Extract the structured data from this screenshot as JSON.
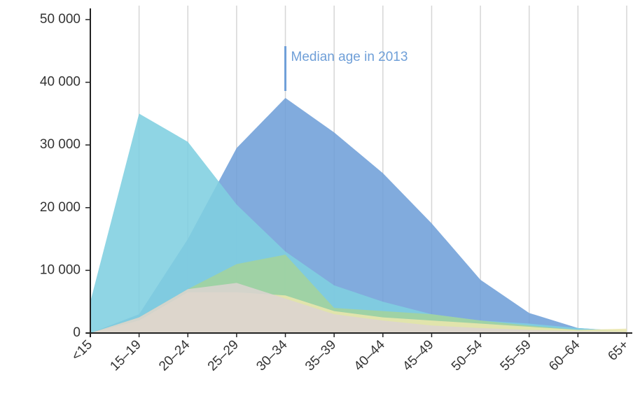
{
  "chart_data": {
    "type": "area",
    "categories": [
      "<15",
      "15–19",
      "20–24",
      "25–29",
      "30–34",
      "35–39",
      "40–44",
      "45–49",
      "50–54",
      "55–59",
      "60–64",
      "65+"
    ],
    "series": [
      {
        "color": "#6f9fd8",
        "values": [
          0,
          3000,
          15000,
          29500,
          37500,
          32000,
          25500,
          17500,
          8500,
          3200,
          800,
          300
        ]
      },
      {
        "color": "#80cfe0",
        "values": [
          5000,
          35000,
          30500,
          20500,
          13000,
          7600,
          5000,
          3000,
          2000,
          1500,
          800,
          300
        ]
      },
      {
        "color": "#a3d39c",
        "values": [
          0,
          2500,
          7000,
          11000,
          12500,
          4000,
          3500,
          3000,
          2000,
          1200,
          500,
          400
        ]
      },
      {
        "color": "#ebe6ad",
        "values": [
          0,
          2000,
          6500,
          6500,
          6000,
          3500,
          2500,
          2000,
          1500,
          1000,
          500,
          700
        ]
      },
      {
        "color": "#dcd4d0",
        "values": [
          0,
          2500,
          7000,
          8000,
          5500,
          3000,
          2000,
          1200,
          800,
          500,
          300,
          200
        ]
      }
    ],
    "ylim": [
      0,
      50000
    ],
    "yticks": [
      0,
      {
        "value": 10000,
        "label": "10 000"
      },
      {
        "value": 20000,
        "label": "20 000"
      },
      {
        "value": 30000,
        "label": "30 000"
      },
      {
        "value": 40000,
        "label": "40 000"
      },
      {
        "value": 50000,
        "label": "50 000"
      }
    ],
    "grid": true,
    "annotation": {
      "text": "Median age in 2013",
      "category": "30–34"
    }
  }
}
